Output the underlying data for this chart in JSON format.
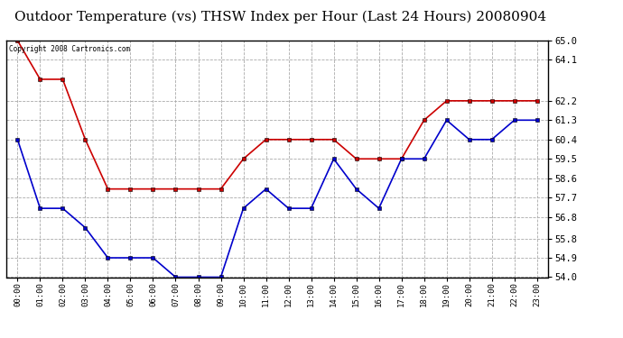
{
  "title": "Outdoor Temperature (vs) THSW Index per Hour (Last 24 Hours) 20080904",
  "copyright_text": "Copyright 2008 Cartronics.com",
  "hours": [
    "00:00",
    "01:00",
    "02:00",
    "03:00",
    "04:00",
    "05:00",
    "06:00",
    "07:00",
    "08:00",
    "09:00",
    "10:00",
    "11:00",
    "12:00",
    "13:00",
    "14:00",
    "15:00",
    "16:00",
    "17:00",
    "18:00",
    "19:00",
    "20:00",
    "21:00",
    "22:00",
    "23:00"
  ],
  "red_data": [
    65.0,
    63.2,
    63.2,
    60.4,
    58.1,
    58.1,
    58.1,
    58.1,
    58.1,
    58.1,
    59.5,
    60.4,
    60.4,
    60.4,
    60.4,
    59.5,
    59.5,
    59.5,
    61.3,
    62.2,
    62.2,
    62.2,
    62.2,
    62.2
  ],
  "blue_data": [
    60.4,
    57.2,
    57.2,
    56.3,
    54.9,
    54.9,
    54.9,
    54.0,
    54.0,
    54.0,
    57.2,
    58.1,
    57.2,
    57.2,
    59.5,
    58.1,
    57.2,
    59.5,
    59.5,
    61.3,
    60.4,
    60.4,
    61.3,
    61.3
  ],
  "ylim_min": 54.0,
  "ylim_max": 65.0,
  "yticks": [
    54.0,
    54.9,
    55.8,
    56.8,
    57.7,
    58.6,
    59.5,
    60.4,
    61.3,
    62.2,
    64.1,
    65.0
  ],
  "red_color": "#cc0000",
  "blue_color": "#0000cc",
  "bg_color": "#ffffff",
  "grid_color": "#aaaaaa",
  "title_fontsize": 11,
  "marker": "s",
  "markersize": 3
}
